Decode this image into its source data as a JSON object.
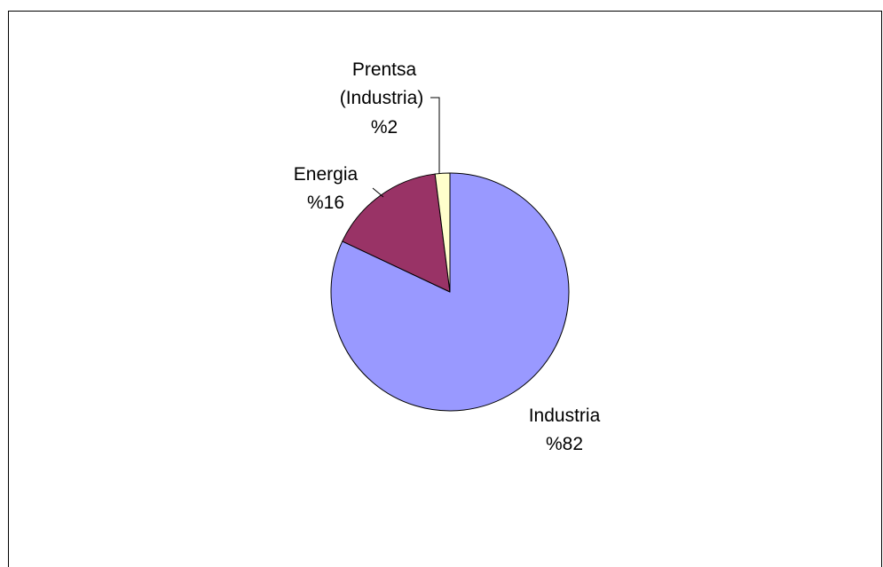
{
  "chart_data": {
    "type": "pie",
    "title": "",
    "slices": [
      {
        "name": "Industria",
        "value": 82,
        "label_lines": [
          "Industria",
          "%82"
        ],
        "color": "#9999ff"
      },
      {
        "name": "Energia",
        "value": 16,
        "label_lines": [
          "Energia",
          "%16"
        ],
        "color": "#993366"
      },
      {
        "name": "Prentsa (Industria)",
        "value": 2,
        "label_lines": [
          "Prentsa",
          "(Industria)",
          "%2"
        ],
        "color": "#ffffcc"
      }
    ],
    "start_angle_deg": 0,
    "direction": "clockwise",
    "legend": "none"
  }
}
